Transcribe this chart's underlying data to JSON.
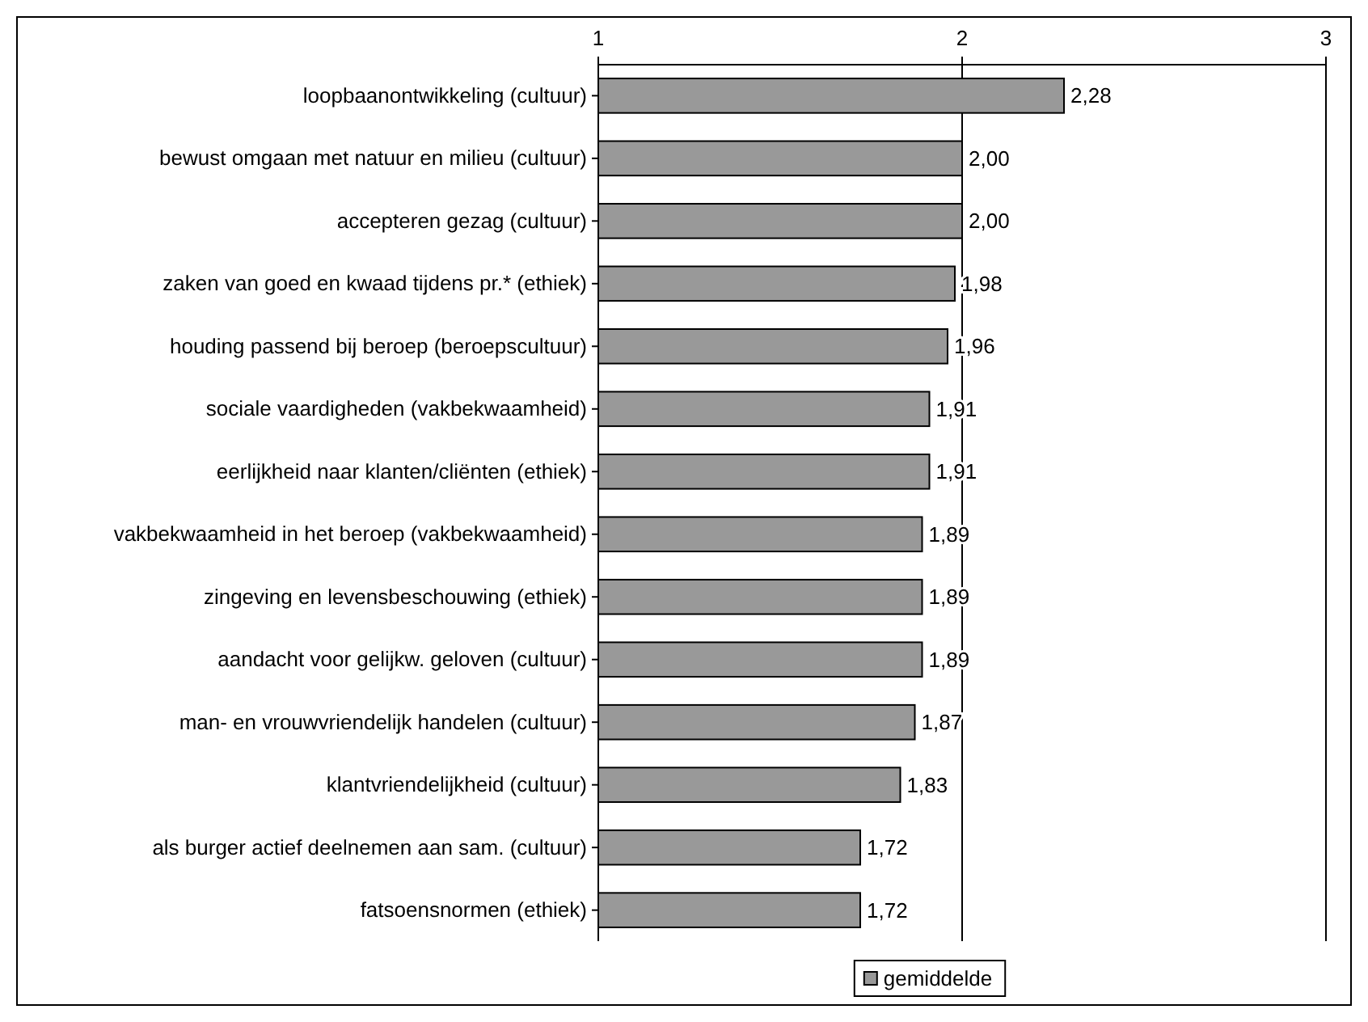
{
  "chart_data": {
    "type": "bar",
    "orientation": "horizontal",
    "categories": [
      "loopbaanontwikkeling (cultuur)",
      "bewust omgaan met natuur en milieu (cultuur)",
      "accepteren gezag (cultuur)",
      "zaken van goed en kwaad tijdens pr.* (ethiek)",
      "houding passend bij beroep (beroepscultuur)",
      "sociale vaardigheden (vakbekwaamheid)",
      "eerlijkheid naar klanten/cliënten (ethiek)",
      "vakbekwaamheid in het beroep (vakbekwaamheid)",
      "zingeving en levensbeschouwing (ethiek)",
      "aandacht voor gelijkw. geloven (cultuur)",
      "man- en vrouwvriendelijk handelen (cultuur)",
      "klantvriendelijkheid (cultuur)",
      "als burger actief deelnemen aan sam. (cultuur)",
      "fatsoensnormen (ethiek)"
    ],
    "series": [
      {
        "name": "gemiddelde",
        "color": "#999999",
        "values": [
          2.28,
          2.0,
          2.0,
          1.98,
          1.96,
          1.91,
          1.91,
          1.89,
          1.89,
          1.89,
          1.87,
          1.83,
          1.72,
          1.72
        ],
        "value_labels": [
          "2,28",
          "2,00",
          "2,00",
          "1,98",
          "1,96",
          "1,91",
          "1,91",
          "1,89",
          "1,89",
          "1,89",
          "1,87",
          "1,83",
          "1,72",
          "1,72"
        ]
      }
    ],
    "xlim": [
      1,
      3
    ],
    "xticks": [
      1,
      2,
      3
    ],
    "grid": "x",
    "legend": "bottom"
  }
}
